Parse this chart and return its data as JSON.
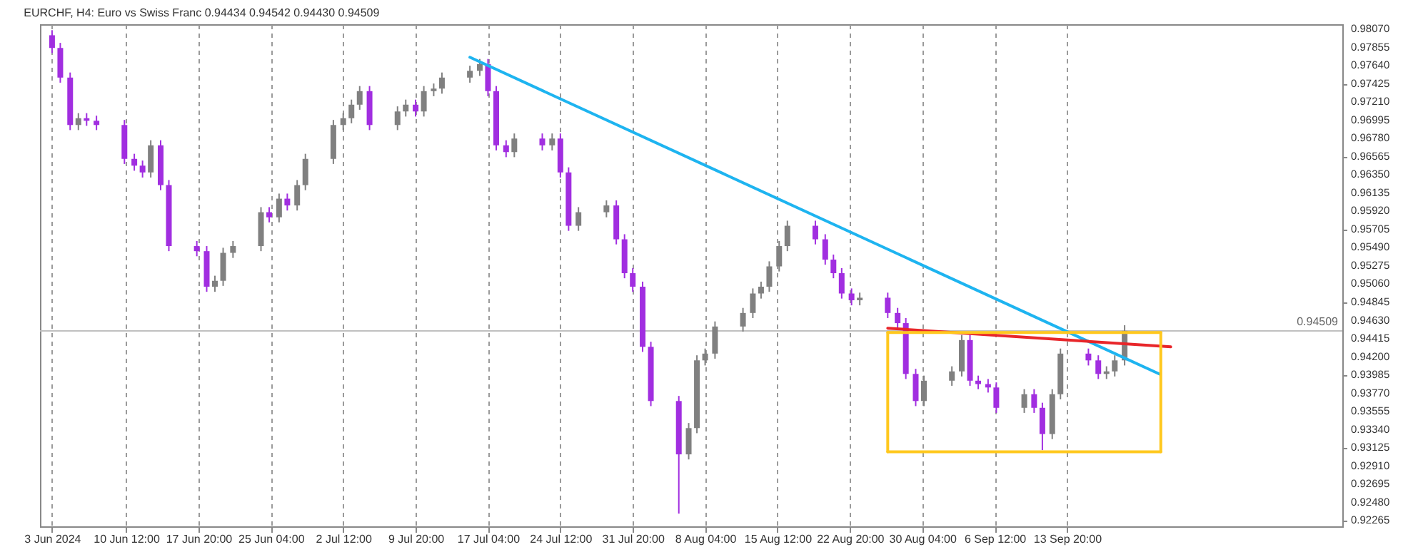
{
  "chart_data": {
    "type": "candlestick",
    "title": "EURCHF, H4:  Euro vs Swiss Franc  0.94434 0.94542 0.94430 0.94509",
    "x": [
      "2024-06-03T00:00",
      "2024-06-03T20:00",
      "2024-06-04T20:00",
      "2024-06-05T16:00",
      "2024-06-06T12:00",
      "2024-06-07T12:00",
      "2024-06-10T08:00",
      "2024-06-11T08:00",
      "2024-06-12T04:00",
      "2024-06-13T00:00",
      "2024-06-14T00:00",
      "2024-06-14T20:00",
      "2024-06-17T16:00",
      "2024-06-18T16:00",
      "2024-06-19T12:00",
      "2024-06-20T08:00",
      "2024-06-21T08:00",
      "2024-06-24T04:00",
      "2024-06-25T00:00",
      "2024-06-26T00:00",
      "2024-06-26T20:00",
      "2024-06-27T20:00",
      "2024-06-28T16:00",
      "2024-07-01T12:00",
      "2024-07-02T12:00",
      "2024-07-03T08:00",
      "2024-07-04T04:00",
      "2024-07-05T04:00",
      "2024-07-08T00:00",
      "2024-07-08T20:00",
      "2024-07-09T20:00",
      "2024-07-10T16:00",
      "2024-07-11T16:00",
      "2024-07-12T12:00",
      "2024-07-15T08:00",
      "2024-07-16T08:00",
      "2024-07-17T04:00",
      "2024-07-18T00:00",
      "2024-07-19T00:00",
      "2024-07-19T20:00",
      "2024-07-22T16:00",
      "2024-07-23T16:00",
      "2024-07-24T12:00",
      "2024-07-25T08:00",
      "2024-07-26T08:00",
      "2024-07-29T04:00",
      "2024-07-30T04:00",
      "2024-07-31T00:00",
      "2024-07-31T20:00",
      "2024-08-01T20:00",
      "2024-08-02T16:00",
      "2024-08-05T12:00",
      "2024-08-06T12:00",
      "2024-08-07T08:00",
      "2024-08-08T04:00",
      "2024-08-09T04:00",
      "2024-08-12T00:00",
      "2024-08-13T00:00",
      "2024-08-13T20:00",
      "2024-08-14T16:00",
      "2024-08-15T16:00",
      "2024-08-16T12:00",
      "2024-08-19T08:00",
      "2024-08-20T08:00",
      "2024-08-21T04:00",
      "2024-08-22T00:00",
      "2024-08-23T00:00",
      "2024-08-23T20:00",
      "2024-08-26T16:00",
      "2024-08-27T16:00",
      "2024-08-28T12:00",
      "2024-08-29T12:00",
      "2024-08-30T08:00",
      "2024-09-02T04:00",
      "2024-09-03T04:00",
      "2024-09-04T00:00",
      "2024-09-04T20:00",
      "2024-09-05T20:00",
      "2024-09-06T16:00",
      "2024-09-09T12:00",
      "2024-09-10T12:00",
      "2024-09-11T08:00",
      "2024-09-12T08:00",
      "2024-09-13T04:00",
      "2024-09-16T00:00",
      "2024-09-17T00:00",
      "2024-09-17T20:00",
      "2024-09-18T16:00",
      "2024-09-19T16:00"
    ],
    "ohlc": [
      [
        0.98,
        0.9806,
        0.9779,
        0.9785
      ],
      [
        0.9785,
        0.9791,
        0.9744,
        0.975
      ],
      [
        0.975,
        0.9756,
        0.9688,
        0.9694
      ],
      [
        0.9694,
        0.9708,
        0.9688,
        0.9702
      ],
      [
        0.9702,
        0.9708,
        0.9693,
        0.9699
      ],
      [
        0.9699,
        0.9705,
        0.9688,
        0.9694
      ],
      [
        0.9694,
        0.97,
        0.9648,
        0.9654
      ],
      [
        0.9654,
        0.966,
        0.964,
        0.9646
      ],
      [
        0.9646,
        0.9652,
        0.9632,
        0.9638
      ],
      [
        0.9638,
        0.9676,
        0.9632,
        0.967
      ],
      [
        0.967,
        0.9676,
        0.9617,
        0.9623
      ],
      [
        0.9623,
        0.9629,
        0.9545,
        0.9551
      ],
      [
        0.9551,
        0.9557,
        0.9539,
        0.9545
      ],
      [
        0.9545,
        0.9551,
        0.9497,
        0.9503
      ],
      [
        0.9503,
        0.9516,
        0.9497,
        0.951
      ],
      [
        0.951,
        0.9549,
        0.9504,
        0.9543
      ],
      [
        0.9543,
        0.9557,
        0.9537,
        0.9551
      ],
      [
        0.9551,
        0.9597,
        0.9545,
        0.9591
      ],
      [
        0.9591,
        0.9597,
        0.9579,
        0.9585
      ],
      [
        0.9585,
        0.9613,
        0.9579,
        0.9607
      ],
      [
        0.9607,
        0.9613,
        0.9593,
        0.9599
      ],
      [
        0.9599,
        0.9629,
        0.9593,
        0.9623
      ],
      [
        0.9623,
        0.966,
        0.9617,
        0.9654
      ],
      [
        0.9654,
        0.97,
        0.9648,
        0.9694
      ],
      [
        0.9694,
        0.9708,
        0.9688,
        0.9702
      ],
      [
        0.9702,
        0.9724,
        0.9696,
        0.9718
      ],
      [
        0.9718,
        0.974,
        0.9712,
        0.9734
      ],
      [
        0.9734,
        0.974,
        0.9688,
        0.9694
      ],
      [
        0.9694,
        0.9716,
        0.9688,
        0.971
      ],
      [
        0.971,
        0.9724,
        0.9704,
        0.9718
      ],
      [
        0.9718,
        0.9724,
        0.9704,
        0.971
      ],
      [
        0.971,
        0.974,
        0.9704,
        0.9734
      ],
      [
        0.9734,
        0.9743,
        0.9728,
        0.9737
      ],
      [
        0.9737,
        0.9756,
        0.9731,
        0.975
      ],
      [
        0.975,
        0.9764,
        0.9744,
        0.9758
      ],
      [
        0.9758,
        0.9772,
        0.9752,
        0.9766
      ],
      [
        0.9766,
        0.9772,
        0.9728,
        0.9734
      ],
      [
        0.9734,
        0.974,
        0.9664,
        0.967
      ],
      [
        0.967,
        0.9676,
        0.9656,
        0.9662
      ],
      [
        0.9662,
        0.9684,
        0.9656,
        0.9678
      ],
      [
        0.9678,
        0.9684,
        0.9664,
        0.967
      ],
      [
        0.967,
        0.9684,
        0.9664,
        0.9678
      ],
      [
        0.9678,
        0.9684,
        0.9632,
        0.9638
      ],
      [
        0.9638,
        0.9644,
        0.9569,
        0.9575
      ],
      [
        0.9575,
        0.9597,
        0.9569,
        0.9591
      ],
      [
        0.9591,
        0.9605,
        0.9585,
        0.9599
      ],
      [
        0.9599,
        0.9605,
        0.9553,
        0.9559
      ],
      [
        0.9559,
        0.9565,
        0.9513,
        0.9519
      ],
      [
        0.9519,
        0.9525,
        0.9497,
        0.9503
      ],
      [
        0.9503,
        0.9509,
        0.9426,
        0.9432
      ],
      [
        0.9432,
        0.9438,
        0.9362,
        0.9368
      ],
      [
        0.9368,
        0.9374,
        0.9235,
        0.9305
      ],
      [
        0.9305,
        0.9342,
        0.9299,
        0.9336
      ],
      [
        0.9336,
        0.9422,
        0.933,
        0.9416
      ],
      [
        0.9416,
        0.943,
        0.941,
        0.9424
      ],
      [
        0.9424,
        0.9462,
        0.9418,
        0.9456
      ],
      [
        0.9456,
        0.9478,
        0.945,
        0.9472
      ],
      [
        0.9472,
        0.9501,
        0.9466,
        0.9495
      ],
      [
        0.9495,
        0.9509,
        0.9489,
        0.9503
      ],
      [
        0.9503,
        0.9533,
        0.9497,
        0.9527
      ],
      [
        0.9527,
        0.9557,
        0.9521,
        0.9551
      ],
      [
        0.9551,
        0.9581,
        0.9545,
        0.9575
      ],
      [
        0.9575,
        0.9581,
        0.9553,
        0.9559
      ],
      [
        0.9559,
        0.9565,
        0.9529,
        0.9535
      ],
      [
        0.9535,
        0.9541,
        0.9513,
        0.9519
      ],
      [
        0.9519,
        0.9525,
        0.9489,
        0.9495
      ],
      [
        0.9495,
        0.9501,
        0.9481,
        0.9487
      ],
      [
        0.9487,
        0.9496,
        0.9481,
        0.949
      ],
      [
        0.949,
        0.9496,
        0.9466,
        0.9472
      ],
      [
        0.9472,
        0.9478,
        0.9454,
        0.946
      ],
      [
        0.946,
        0.9466,
        0.9394,
        0.94
      ],
      [
        0.94,
        0.9406,
        0.9362,
        0.9368
      ],
      [
        0.9368,
        0.9398,
        0.9362,
        0.9392
      ],
      [
        0.9392,
        0.9409,
        0.9386,
        0.9403
      ],
      [
        0.9403,
        0.9446,
        0.9397,
        0.944
      ],
      [
        0.944,
        0.9446,
        0.9386,
        0.9392
      ],
      [
        0.9392,
        0.9398,
        0.9382,
        0.9388
      ],
      [
        0.9388,
        0.9394,
        0.9378,
        0.9384
      ],
      [
        0.9384,
        0.939,
        0.9354,
        0.936
      ],
      [
        0.936,
        0.9382,
        0.9354,
        0.9376
      ],
      [
        0.9376,
        0.9382,
        0.9354,
        0.936
      ],
      [
        0.936,
        0.9366,
        0.931,
        0.9329
      ],
      [
        0.9329,
        0.9382,
        0.9323,
        0.9376
      ],
      [
        0.9376,
        0.943,
        0.937,
        0.9424
      ],
      [
        0.9424,
        0.943,
        0.941,
        0.9416
      ],
      [
        0.9416,
        0.9422,
        0.9394,
        0.94
      ],
      [
        0.94,
        0.9409,
        0.9394,
        0.9403
      ],
      [
        0.9403,
        0.9422,
        0.9397,
        0.9416
      ],
      [
        0.9416,
        0.94575,
        0.941,
        0.94509
      ]
    ],
    "colors": [
      "#a12ee0",
      "#a12ee0",
      "#a12ee0",
      "#808080",
      "#a12ee0",
      "#a12ee0",
      "#a12ee0",
      "#a12ee0",
      "#a12ee0",
      "#808080",
      "#a12ee0",
      "#a12ee0",
      "#a12ee0",
      "#a12ee0",
      "#808080",
      "#808080",
      "#808080",
      "#808080",
      "#a12ee0",
      "#808080",
      "#a12ee0",
      "#808080",
      "#808080",
      "#808080",
      "#808080",
      "#808080",
      "#808080",
      "#a12ee0",
      "#808080",
      "#808080",
      "#a12ee0",
      "#808080",
      "#808080",
      "#808080",
      "#808080",
      "#808080",
      "#a12ee0",
      "#a12ee0",
      "#a12ee0",
      "#808080",
      "#a12ee0",
      "#808080",
      "#a12ee0",
      "#a12ee0",
      "#808080",
      "#808080",
      "#a12ee0",
      "#a12ee0",
      "#a12ee0",
      "#a12ee0",
      "#a12ee0",
      "#a12ee0",
      "#808080",
      "#808080",
      "#808080",
      "#808080",
      "#808080",
      "#808080",
      "#808080",
      "#808080",
      "#808080",
      "#808080",
      "#a12ee0",
      "#a12ee0",
      "#a12ee0",
      "#a12ee0",
      "#a12ee0",
      "#808080",
      "#a12ee0",
      "#a12ee0",
      "#a12ee0",
      "#a12ee0",
      "#808080",
      "#808080",
      "#808080",
      "#a12ee0",
      "#a12ee0",
      "#a12ee0",
      "#a12ee0",
      "#808080",
      "#a12ee0",
      "#a12ee0",
      "#808080",
      "#808080",
      "#a12ee0",
      "#a12ee0",
      "#808080",
      "#808080",
      "#808080"
    ],
    "series": [
      {
        "type": "line",
        "color": "#1eb4f0",
        "x": [
          "2024-07-15T08:00",
          "2024-09-23T04:00"
        ],
        "values": [
          0.9774,
          0.94
        ]
      },
      {
        "type": "line",
        "color": "#e8262a",
        "x": [
          "2024-08-26T16:00",
          "2024-09-24T08:00"
        ],
        "values": [
          0.9454,
          0.9432
        ]
      },
      {
        "type": "line",
        "color": "#ffc81e",
        "x": [
          "2024-08-26T16:00",
          "2024-09-23T08:00"
        ],
        "values": [
          0.9449,
          0.9449
        ]
      },
      {
        "type": "line",
        "color": "#ffc81e",
        "x": [
          "2024-08-26T16:00",
          "2024-09-23T08:00"
        ],
        "values": [
          0.9308,
          0.9308
        ]
      },
      {
        "type": "line",
        "color": "#ffc81e",
        "x": [
          "2024-08-26T16:00",
          "2024-08-26T16:00"
        ],
        "values": [
          0.9308,
          0.9449
        ]
      },
      {
        "type": "line",
        "color": "#ffc81e",
        "x": [
          "2024-09-23T08:00",
          "2024-09-23T08:00"
        ],
        "values": [
          0.9308,
          0.9449
        ]
      }
    ],
    "ref_lines": [
      {
        "axis": "y",
        "value": 0.94509,
        "label": "0.94509",
        "color": "#c0c0c0"
      }
    ],
    "xlim": [
      "2024-06-02T12:00",
      "2024-10-11T00:00"
    ],
    "xticks": [
      {
        "value": "2024-06-03T00:00",
        "label": "3 Jun 2024"
      },
      {
        "value": "2024-06-10T12:00",
        "label": "10 Jun 12:00"
      },
      {
        "value": "2024-06-17T20:00",
        "label": "17 Jun 20:00"
      },
      {
        "value": "2024-06-25T04:00",
        "label": "25 Jun 04:00"
      },
      {
        "value": "2024-07-02T12:00",
        "label": "2 Jul 12:00"
      },
      {
        "value": "2024-07-09T20:00",
        "label": "9 Jul 20:00"
      },
      {
        "value": "2024-07-17T04:00",
        "label": "17 Jul 04:00"
      },
      {
        "value": "2024-07-24T12:00",
        "label": "24 Jul 12:00"
      },
      {
        "value": "2024-07-31T20:00",
        "label": "31 Jul 20:00"
      },
      {
        "value": "2024-08-08T04:00",
        "label": "8 Aug 04:00"
      },
      {
        "value": "2024-08-15T12:00",
        "label": "15 Aug 12:00"
      },
      {
        "value": "2024-08-22T20:00",
        "label": "22 Aug 20:00"
      },
      {
        "value": "2024-08-30T04:00",
        "label": "30 Aug 04:00"
      },
      {
        "value": "2024-09-06T12:00",
        "label": "6 Sep 12:00"
      },
      {
        "value": "2024-09-13T20:00",
        "label": "13 Sep 20:00"
      }
    ],
    "ylim": [
      0.922,
      0.9813
    ],
    "yticks": [
      {
        "value": 0.9807,
        "label": "0.98070"
      },
      {
        "value": 0.97855,
        "label": "0.97855"
      },
      {
        "value": 0.9764,
        "label": "0.97640"
      },
      {
        "value": 0.97425,
        "label": "0.97425"
      },
      {
        "value": 0.9721,
        "label": "0.97210"
      },
      {
        "value": 0.96995,
        "label": "0.96995"
      },
      {
        "value": 0.9678,
        "label": "0.96780"
      },
      {
        "value": 0.96565,
        "label": "0.96565"
      },
      {
        "value": 0.9635,
        "label": "0.96350"
      },
      {
        "value": 0.96135,
        "label": "0.96135"
      },
      {
        "value": 0.9592,
        "label": "0.95920"
      },
      {
        "value": 0.95705,
        "label": "0.95705"
      },
      {
        "value": 0.9549,
        "label": "0.95490"
      },
      {
        "value": 0.95275,
        "label": "0.95275"
      },
      {
        "value": 0.9506,
        "label": "0.95060"
      },
      {
        "value": 0.94845,
        "label": "0.94845"
      },
      {
        "value": 0.9463,
        "label": "0.94630"
      },
      {
        "value": 0.94415,
        "label": "0.94415"
      },
      {
        "value": 0.942,
        "label": "0.94200"
      },
      {
        "value": 0.93985,
        "label": "0.93985"
      },
      {
        "value": 0.9377,
        "label": "0.93770"
      },
      {
        "value": 0.93555,
        "label": "0.93555"
      },
      {
        "value": 0.9334,
        "label": "0.93340"
      },
      {
        "value": 0.93125,
        "label": "0.93125"
      },
      {
        "value": 0.9291,
        "label": "0.92910"
      },
      {
        "value": 0.92695,
        "label": "0.92695"
      },
      {
        "value": 0.9248,
        "label": "0.92480"
      },
      {
        "value": 0.92265,
        "label": "0.92265"
      }
    ],
    "grid": "x"
  }
}
